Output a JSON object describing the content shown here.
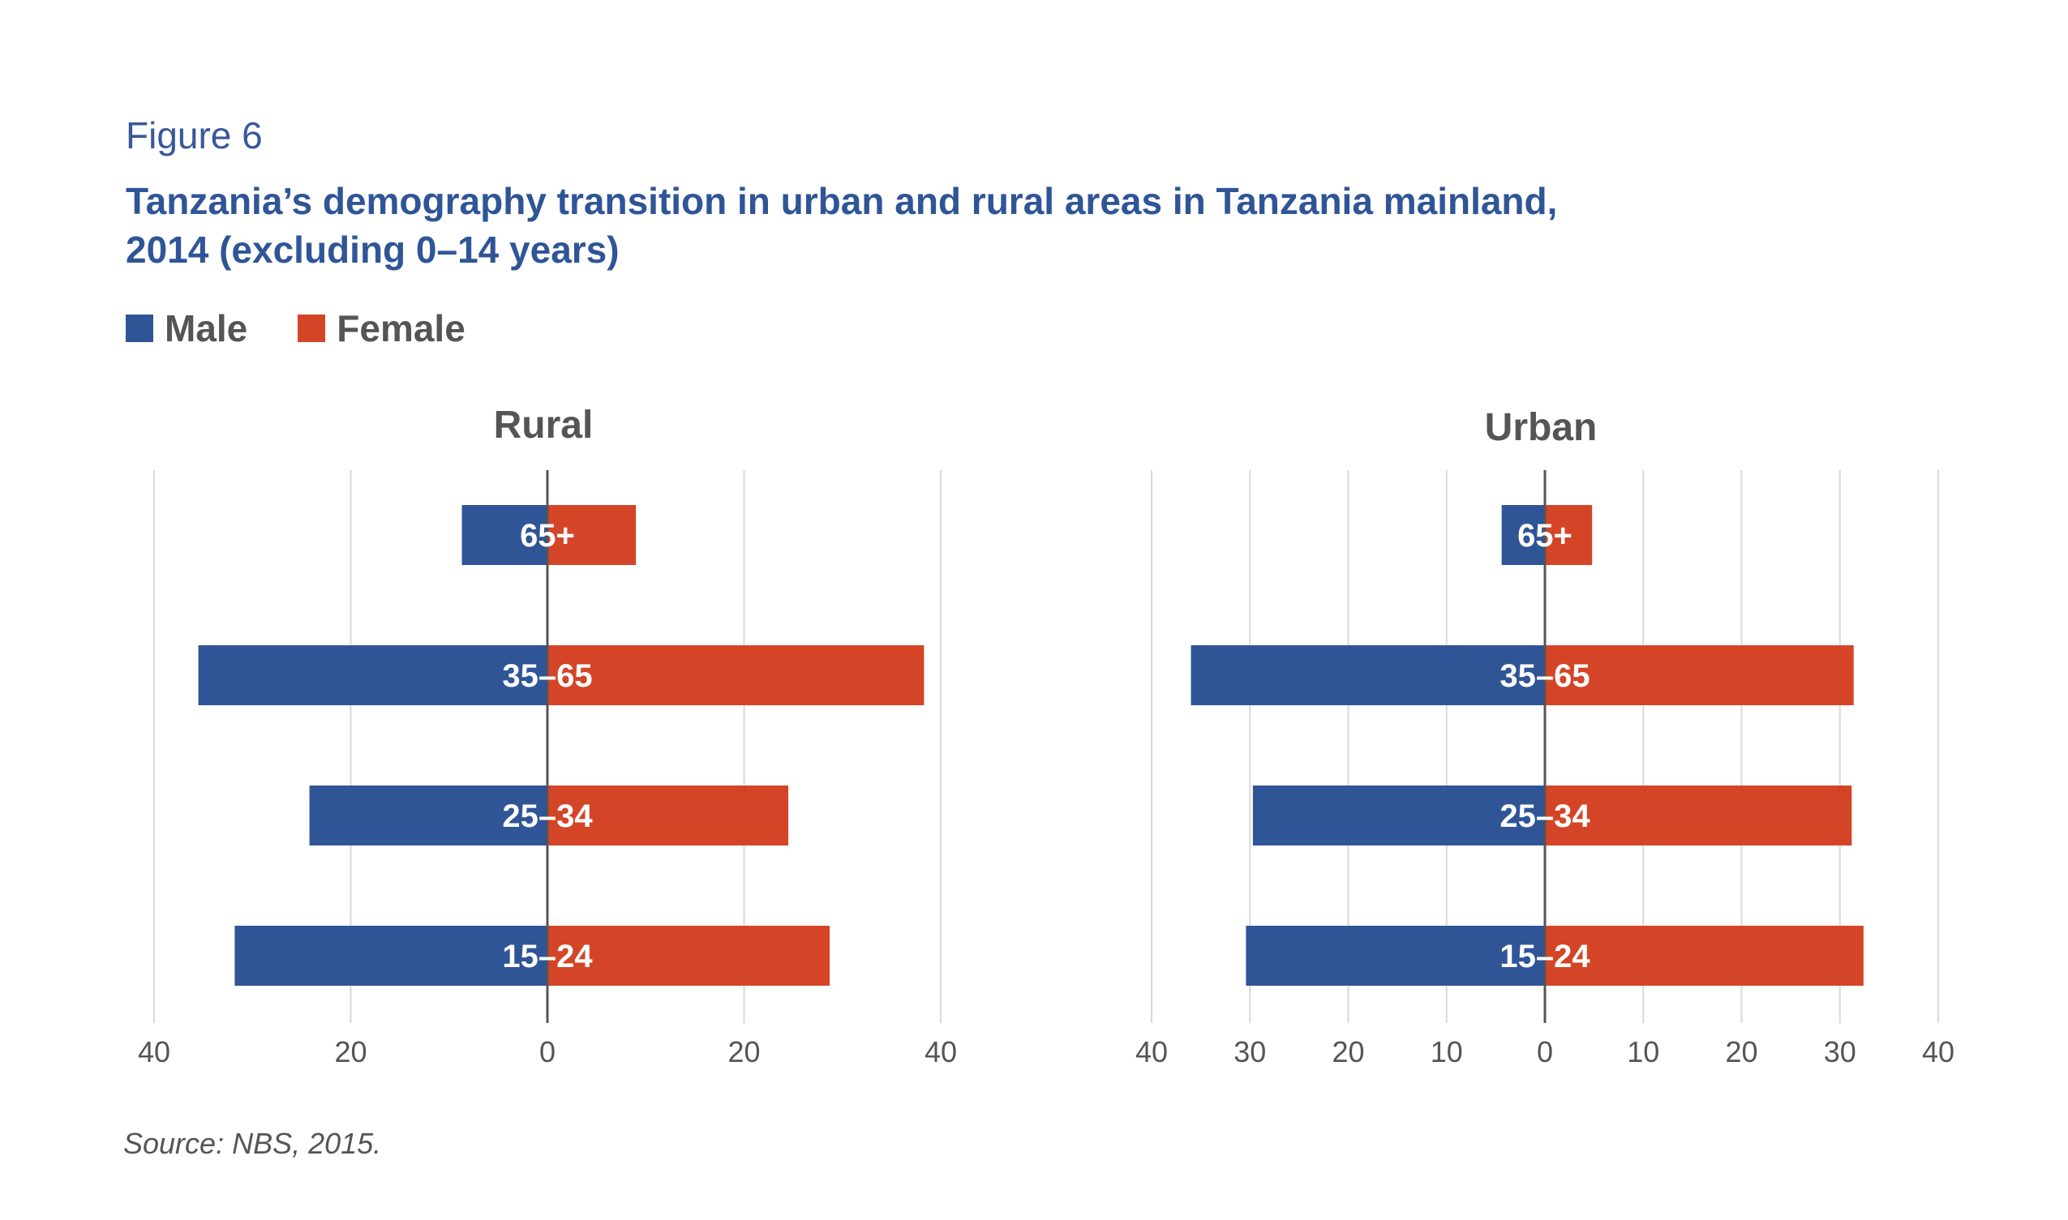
{
  "figure_label": "Figure 6",
  "figure_title_line1": "Tanzania’s demography transition in urban and rural areas in Tanzania mainland,",
  "figure_title_line2": "2014 (excluding 0–14 years)",
  "source": "Source: NBS, 2015.",
  "colors": {
    "male": "#2f5597",
    "female": "#d44527",
    "grid": "#d9d9d9",
    "axis": "#555555",
    "text": "#555555"
  },
  "legend": [
    {
      "label": "Male",
      "color": "#2f5597"
    },
    {
      "label": "Female",
      "color": "#d44527"
    }
  ],
  "chart_data": [
    {
      "type": "bar",
      "orientation": "horizontal-butterfly",
      "title": "Rural",
      "categories": [
        "65+",
        "35–65",
        "25–34",
        "15–24"
      ],
      "series": [
        {
          "name": "Male",
          "values": [
            8.7,
            35.5,
            24.2,
            31.8
          ]
        },
        {
          "name": "Female",
          "values": [
            9.0,
            38.3,
            24.5,
            28.7
          ]
        }
      ],
      "xlim": [
        -40,
        40
      ],
      "ticks": [
        -40,
        -20,
        0,
        20,
        40
      ],
      "tick_labels": [
        "40",
        "20",
        "0",
        "20",
        "40"
      ],
      "grid": true,
      "legend_position": "top-left"
    },
    {
      "type": "bar",
      "orientation": "horizontal-butterfly",
      "title": "Urban",
      "categories": [
        "65+",
        "35–65",
        "25–34",
        "15–24"
      ],
      "series": [
        {
          "name": "Male",
          "values": [
            4.4,
            36.0,
            29.7,
            30.4
          ]
        },
        {
          "name": "Female",
          "values": [
            4.8,
            31.4,
            31.2,
            32.4
          ]
        }
      ],
      "xlim": [
        -40,
        40
      ],
      "ticks": [
        -40,
        -30,
        -20,
        -10,
        0,
        10,
        20,
        30,
        40
      ],
      "tick_labels": [
        "40",
        "30",
        "20",
        "10",
        "0",
        "10",
        "20",
        "30",
        "40"
      ],
      "grid": true,
      "legend_position": "top-left"
    }
  ]
}
